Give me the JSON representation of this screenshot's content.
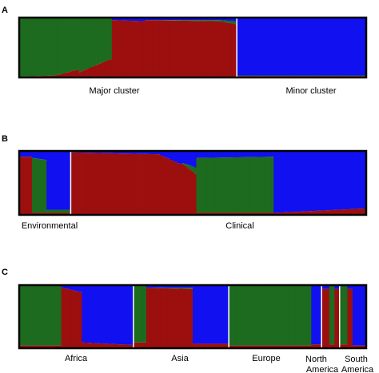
{
  "colors": {
    "cluster1": "#1d6b1e",
    "cluster2": "#9c0f0f",
    "cluster3": "#1010f0",
    "separator": "#ffffff",
    "frame": "#000000"
  },
  "chart_data": [
    {
      "type": "bar",
      "stacked": true,
      "panel_letter": "A",
      "title": "",
      "xlabel": "",
      "ylabel": "",
      "ylim": [
        0,
        1
      ],
      "grid": false,
      "group_labels": [
        "Major cluster",
        "Minor cluster"
      ],
      "groups": [
        {
          "label": "Major cluster",
          "segments": [
            {
              "n": 20,
              "green": [
                1.0,
                0.98
              ],
              "red": [
                0.0,
                0.02
              ],
              "blue": [
                0.0,
                0.0
              ]
            },
            {
              "n": 12,
              "green": [
                0.97,
                0.88
              ],
              "red": [
                0.03,
                0.12
              ],
              "blue": [
                0.0,
                0.0
              ]
            },
            {
              "n": 18,
              "green": [
                0.92,
                0.7
              ],
              "red": [
                0.08,
                0.3
              ],
              "blue": [
                0.0,
                0.0
              ]
            },
            {
              "n": 18,
              "green": [
                0.0,
                0.0
              ],
              "red": [
                0.97,
                0.95
              ],
              "blue": [
                0.03,
                0.05
              ]
            },
            {
              "n": 40,
              "green": [
                0.0,
                0.02
              ],
              "red": [
                0.97,
                0.95
              ],
              "blue": [
                0.03,
                0.03
              ]
            },
            {
              "n": 10,
              "green": [
                0.02,
                0.05
              ],
              "red": [
                0.95,
                0.9
              ],
              "blue": [
                0.03,
                0.05
              ]
            }
          ]
        },
        {
          "label": "Minor cluster",
          "segments": [
            {
              "n": 70,
              "green": [
                0.01,
                0.01
              ],
              "red": [
                0.01,
                0.01
              ],
              "blue": [
                0.98,
                0.98
              ]
            }
          ]
        }
      ]
    },
    {
      "type": "bar",
      "stacked": true,
      "panel_letter": "B",
      "title": "",
      "xlabel": "",
      "ylabel": "",
      "ylim": [
        0,
        1
      ],
      "grid": false,
      "group_labels": [
        "Environmental",
        "Clinical"
      ],
      "groups": [
        {
          "label": "Environmental",
          "segments": [
            {
              "n": 5,
              "green": [
                0.0,
                0.0
              ],
              "red": [
                0.92,
                0.92
              ],
              "blue": [
                0.08,
                0.08
              ]
            },
            {
              "n": 6,
              "green": [
                0.88,
                0.85
              ],
              "red": [
                0.02,
                0.02
              ],
              "blue": [
                0.1,
                0.13
              ]
            },
            {
              "n": 10,
              "green": [
                0.05,
                0.05
              ],
              "red": [
                0.02,
                0.02
              ],
              "blue": [
                0.93,
                0.93
              ]
            }
          ]
        },
        {
          "label": "Clinical",
          "segments": [
            {
              "n": 36,
              "green": [
                0.0,
                0.0
              ],
              "red": [
                0.99,
                0.96
              ],
              "blue": [
                0.01,
                0.04
              ]
            },
            {
              "n": 10,
              "green": [
                0.0,
                0.0
              ],
              "red": [
                0.96,
                0.8
              ],
              "blue": [
                0.04,
                0.2
              ]
            },
            {
              "n": 6,
              "green": [
                0.02,
                0.1
              ],
              "red": [
                0.8,
                0.65
              ],
              "blue": [
                0.18,
                0.25
              ]
            },
            {
              "n": 32,
              "green": [
                0.88,
                0.9
              ],
              "red": [
                0.02,
                0.02
              ],
              "blue": [
                0.1,
                0.08
              ]
            },
            {
              "n": 38,
              "green": [
                0.0,
                0.0
              ],
              "red": [
                0.02,
                0.09
              ],
              "blue": [
                0.98,
                0.91
              ]
            }
          ]
        }
      ]
    },
    {
      "type": "bar",
      "stacked": true,
      "panel_letter": "C",
      "title": "",
      "xlabel": "",
      "ylabel": "",
      "ylim": [
        0,
        1
      ],
      "grid": false,
      "group_labels": [
        "Africa",
        "Asia",
        "Europe",
        "North America",
        "South America"
      ],
      "groups": [
        {
          "label": "Africa",
          "segments": [
            {
              "n": 16,
              "green": [
                0.97,
                0.97
              ],
              "red": [
                0.03,
                0.03
              ],
              "blue": [
                0.0,
                0.0
              ]
            },
            {
              "n": 8,
              "green": [
                0.0,
                0.0
              ],
              "red": [
                0.97,
                0.9
              ],
              "blue": [
                0.03,
                0.1
              ]
            },
            {
              "n": 20,
              "green": [
                0.0,
                0.0
              ],
              "red": [
                0.08,
                0.04
              ],
              "blue": [
                0.92,
                0.96
              ]
            }
          ]
        },
        {
          "label": "Asia",
          "segments": [
            {
              "n": 5,
              "green": [
                0.92,
                0.92
              ],
              "red": [
                0.08,
                0.08
              ],
              "blue": [
                0.0,
                0.0
              ]
            },
            {
              "n": 18,
              "green": [
                0.0,
                0.02
              ],
              "red": [
                0.97,
                0.95
              ],
              "blue": [
                0.03,
                0.03
              ]
            },
            {
              "n": 14,
              "green": [
                0.0,
                0.0
              ],
              "red": [
                0.06,
                0.06
              ],
              "blue": [
                0.94,
                0.94
              ]
            }
          ]
        },
        {
          "label": "Europe",
          "segments": [
            {
              "n": 32,
              "green": [
                0.97,
                0.97
              ],
              "red": [
                0.03,
                0.03
              ],
              "blue": [
                0.0,
                0.0
              ]
            },
            {
              "n": 4,
              "green": [
                0.0,
                0.0
              ],
              "red": [
                0.05,
                0.05
              ],
              "blue": [
                0.95,
                0.95
              ]
            }
          ]
        },
        {
          "label": "North America",
          "segments": [
            {
              "n": 3,
              "green": [
                0.0,
                0.0
              ],
              "red": [
                0.95,
                0.95
              ],
              "blue": [
                0.05,
                0.05
              ]
            },
            {
              "n": 2,
              "green": [
                0.95,
                0.95
              ],
              "red": [
                0.05,
                0.05
              ],
              "blue": [
                0.0,
                0.0
              ]
            },
            {
              "n": 2,
              "green": [
                0.0,
                0.0
              ],
              "red": [
                0.95,
                0.95
              ],
              "blue": [
                0.05,
                0.05
              ]
            }
          ]
        },
        {
          "label": "South America",
          "segments": [
            {
              "n": 3,
              "green": [
                0.95,
                0.95
              ],
              "red": [
                0.05,
                0.05
              ],
              "blue": [
                0.0,
                0.0
              ]
            },
            {
              "n": 2,
              "green": [
                0.0,
                0.0
              ],
              "red": [
                0.95,
                0.95
              ],
              "blue": [
                0.05,
                0.05
              ]
            },
            {
              "n": 5,
              "green": [
                0.0,
                0.0
              ],
              "red": [
                0.03,
                0.03
              ],
              "blue": [
                0.97,
                0.97
              ]
            }
          ]
        }
      ]
    }
  ]
}
